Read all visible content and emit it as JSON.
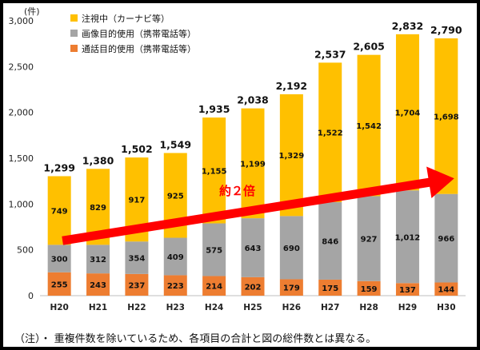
{
  "chart_data": {
    "type": "bar",
    "stacked": true,
    "unit": "(件)",
    "categories": [
      "H20",
      "H21",
      "H22",
      "H23",
      "H24",
      "H25",
      "H26",
      "H27",
      "H28",
      "H29",
      "H30"
    ],
    "series": [
      {
        "name": "通話目的使用（携帯電話等）",
        "color": "#ED7D31",
        "values": [
          255,
          243,
          237,
          223,
          214,
          202,
          179,
          175,
          159,
          137,
          144
        ]
      },
      {
        "name": "画像目的使用（携帯電話等）",
        "color": "#A5A5A5",
        "values": [
          300,
          312,
          354,
          409,
          575,
          643,
          690,
          846,
          927,
          1012,
          966
        ]
      },
      {
        "name": "注視中（カーナビ等）",
        "color": "#FFC000",
        "values": [
          749,
          829,
          917,
          925,
          1155,
          1199,
          1329,
          1522,
          1542,
          1704,
          1698
        ]
      }
    ],
    "totals": [
      1299,
      1380,
      1502,
      1549,
      1935,
      2038,
      2192,
      2537,
      2605,
      2832,
      2790
    ],
    "ylim": [
      0,
      3000
    ],
    "yticks": [
      0,
      500,
      1000,
      1500,
      2000,
      2500,
      3000
    ],
    "ytick_labels": [
      "0",
      "500",
      "1,000",
      "1,500",
      "2,000",
      "2,500",
      "3,000"
    ],
    "legend": {
      "position": "top-left",
      "order": [
        2,
        1,
        0
      ]
    },
    "annotation": {
      "text": "約２倍",
      "arrow_color": "#FF0000",
      "text_color": "#FF0000"
    },
    "grid": false
  },
  "note": "（注）・ 重複件数を除いているため、各項目の合計と図の総件数とは異なる。"
}
